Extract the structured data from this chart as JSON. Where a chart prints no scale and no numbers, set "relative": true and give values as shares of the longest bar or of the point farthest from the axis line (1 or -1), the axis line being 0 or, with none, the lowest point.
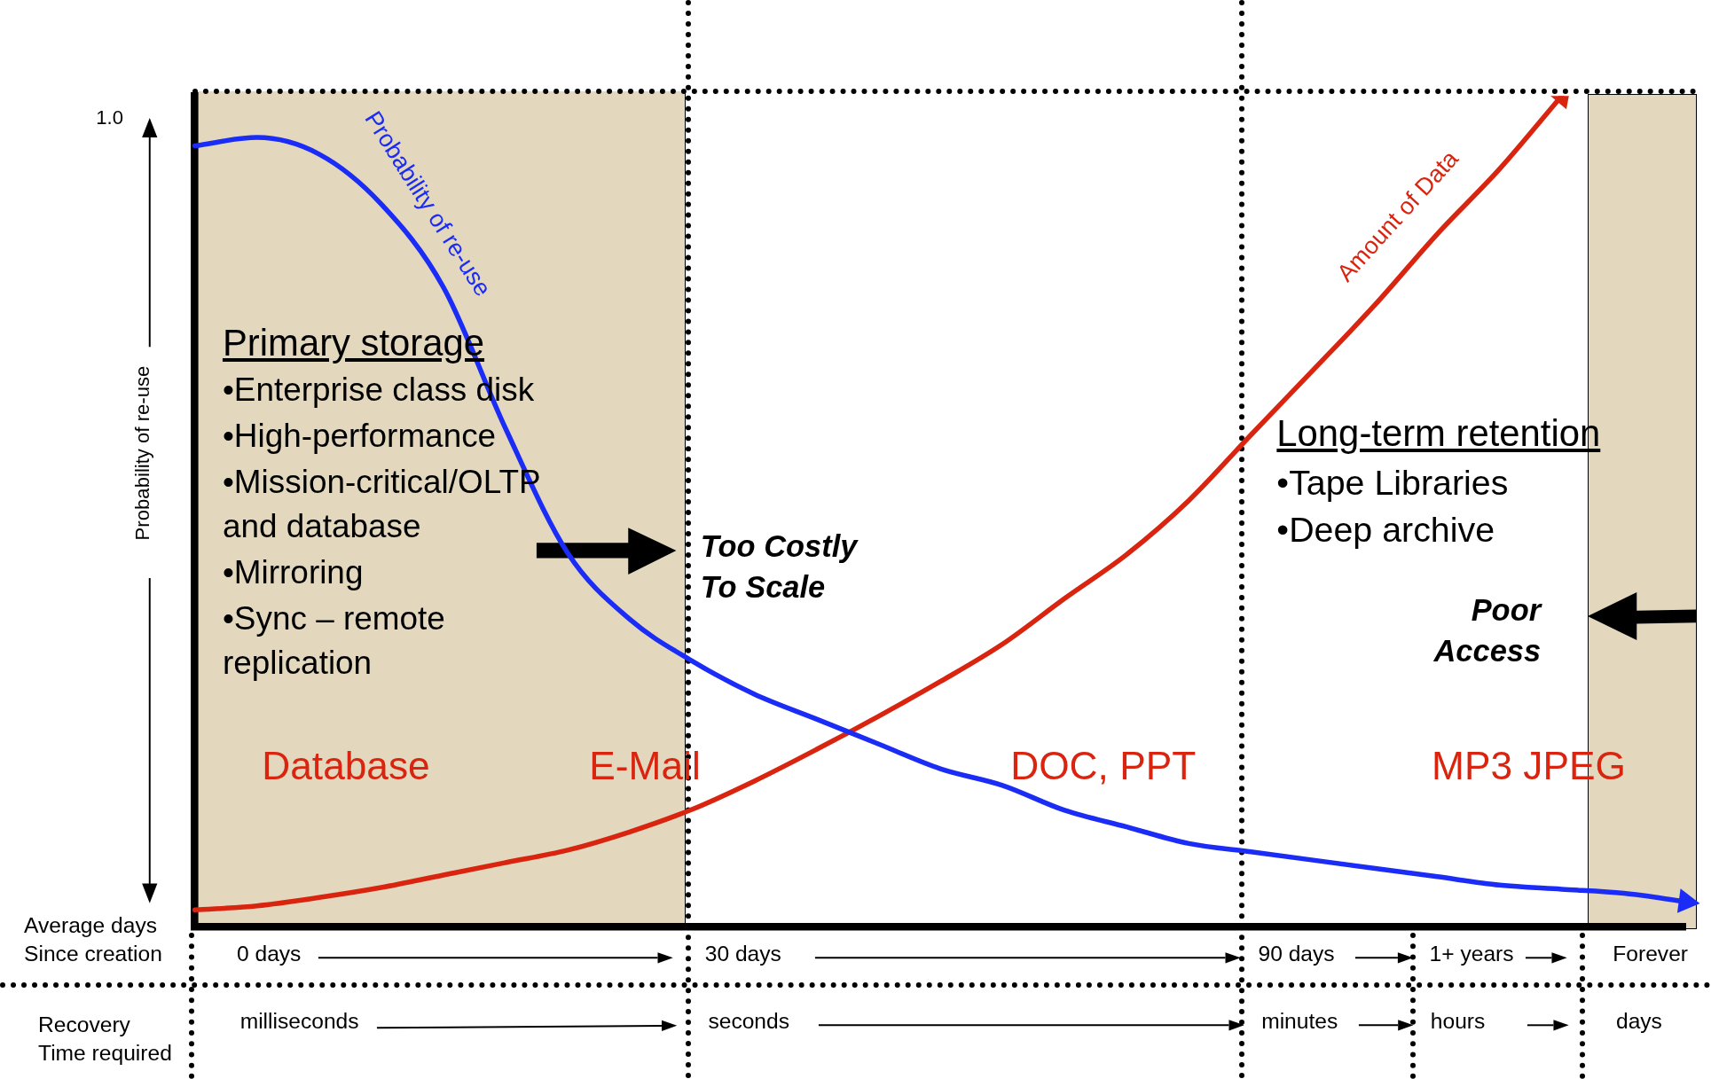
{
  "chart_data": {
    "type": "line",
    "relative": true,
    "ylabel": "Probability of re-use",
    "legend": false,
    "marker": "none",
    "line_style": "solid",
    "categories": [
      null,
      null,
      null,
      null,
      null,
      null,
      null,
      null,
      null,
      null,
      null,
      null,
      null,
      null,
      null,
      null,
      null,
      null,
      null,
      null,
      null,
      null,
      null,
      null,
      null
    ],
    "series": [
      {
        "name": "Probability of re-use",
        "color": "#1a2cf5",
        "values": [
          0.94,
          0.95,
          0.93,
          0.87,
          0.77,
          0.6,
          0.45,
          0.37,
          0.32,
          0.28,
          0.25,
          0.22,
          0.19,
          0.17,
          0.14,
          0.12,
          0.1,
          0.09,
          0.08,
          0.07,
          0.06,
          0.05,
          0.045,
          0.04,
          0.03
        ]
      },
      {
        "name": "Amount of Data",
        "color": "#d9240f",
        "values": [
          0.02,
          0.025,
          0.035,
          0.047,
          0.062,
          0.077,
          0.092,
          0.114,
          0.141,
          0.175,
          0.213,
          0.253,
          0.295,
          0.34,
          0.395,
          0.448,
          0.513,
          0.592,
          0.67,
          0.749,
          0.834,
          0.912,
          1,
          null,
          null
        ]
      }
    ],
    "annotations": [
      "1.0",
      "Primary storage",
      "•Enterprise class disk",
      "•High-performance",
      "•Mission-critical/OLTP",
      "and database",
      "•Mirroring",
      "•Sync – remote",
      "replication",
      "Too Costly",
      "To Scale",
      "Long-term retention",
      "•Tape Libraries",
      "•Deep archive",
      "Poor",
      "Access",
      "Database",
      "E-Mail",
      "DOC, PPT",
      "MP3 JPEG",
      "Average days",
      "Since creation",
      "0 days",
      "30 days",
      "90 days",
      "1+ years",
      "Forever",
      "Recovery",
      "Time required",
      "milliseconds",
      "seconds",
      "minutes",
      "hours",
      "days"
    ]
  }
}
